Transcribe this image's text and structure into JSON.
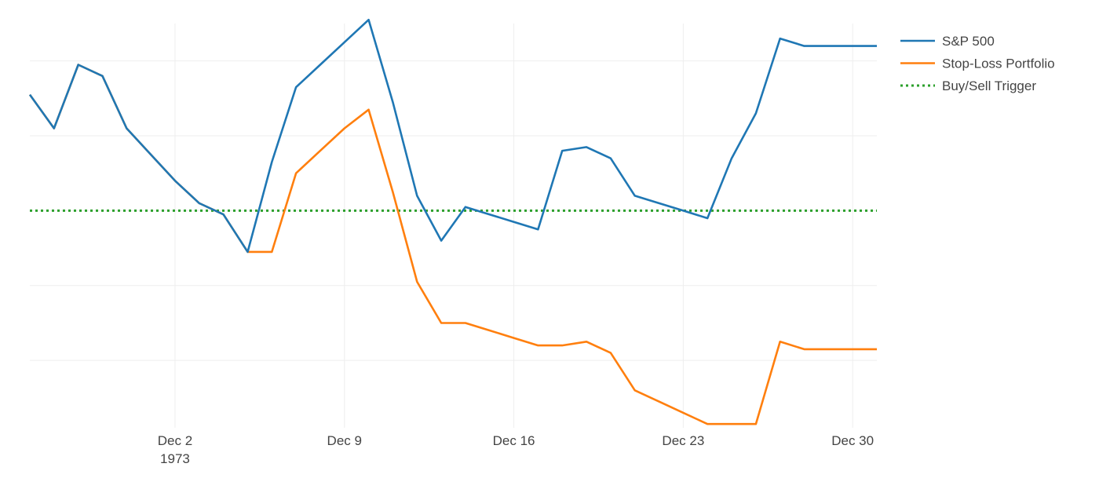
{
  "chart_data": {
    "type": "line",
    "title": "",
    "xlabel": "",
    "ylabel": "",
    "x": [
      "1973-11-26",
      "1973-11-27",
      "1973-11-28",
      "1973-11-29",
      "1973-11-30",
      "1973-12-01",
      "1973-12-02",
      "1973-12-03",
      "1973-12-04",
      "1973-12-05",
      "1973-12-06",
      "1973-12-07",
      "1973-12-08",
      "1973-12-09",
      "1973-12-10",
      "1973-12-11",
      "1973-12-12",
      "1973-12-13",
      "1973-12-14",
      "1973-12-15",
      "1973-12-16",
      "1973-12-17",
      "1973-12-18",
      "1973-12-19",
      "1973-12-20",
      "1973-12-21",
      "1973-12-22",
      "1973-12-23",
      "1973-12-24",
      "1973-12-25",
      "1973-12-26",
      "1973-12-27",
      "1973-12-28",
      "1973-12-29",
      "1973-12-30",
      "1973-12-31"
    ],
    "xlim": [
      "1973-11-26",
      "1973-12-31"
    ],
    "x_ticks": [
      {
        "date": "1973-12-02",
        "label": "Dec 2",
        "sublabel": "1973"
      },
      {
        "date": "1973-12-09",
        "label": "Dec 9"
      },
      {
        "date": "1973-12-16",
        "label": "Dec 16"
      },
      {
        "date": "1973-12-23",
        "label": "Dec 23"
      },
      {
        "date": "1973-12-30",
        "label": "Dec 30"
      }
    ],
    "y_tick_labels_shown": false,
    "y_gridlines": [
      -4,
      -2,
      0,
      2,
      4
    ],
    "ylim": [
      -5.8,
      5.0
    ],
    "grid": true,
    "legend_position": "top-right",
    "series": [
      {
        "name": "S&P 500",
        "color": "#1f77b4",
        "dash": "solid",
        "values": [
          3.1,
          2.2,
          3.9,
          3.6,
          2.2,
          1.5,
          0.8,
          0.2,
          -0.1,
          -1.1,
          1.3,
          3.3,
          3.9,
          4.5,
          5.1,
          2.9,
          0.4,
          -0.8,
          0.1,
          -0.1,
          -0.3,
          -0.5,
          1.6,
          1.7,
          1.4,
          0.4,
          0.2,
          0,
          -0.2,
          1.4,
          2.6,
          4.6,
          4.4,
          4.4,
          4.4,
          4.4
        ]
      },
      {
        "name": "Stop-Loss Portfolio",
        "color": "#ff7f0e",
        "dash": "solid",
        "values": [
          3.1,
          2.2,
          3.9,
          3.6,
          2.2,
          1.5,
          0.8,
          0.2,
          -0.1,
          -1.1,
          -1.1,
          1.0,
          1.6,
          2.2,
          2.7,
          0.5,
          -1.9,
          -3.0,
          -3.0,
          -3.2,
          -3.4,
          -3.6,
          -3.6,
          -3.5,
          -3.8,
          -4.8,
          -5.1,
          -5.4,
          -5.7,
          -5.7,
          -5.7,
          -3.5,
          -3.7,
          -3.7,
          -3.7,
          -3.7
        ]
      },
      {
        "name": "Buy/Sell Trigger",
        "color": "#2ca02c",
        "dash": "dotted",
        "values": [
          0,
          0,
          0,
          0,
          0,
          0,
          0,
          0,
          0,
          0,
          0,
          0,
          0,
          0,
          0,
          0,
          0,
          0,
          0,
          0,
          0,
          0,
          0,
          0,
          0,
          0,
          0,
          0,
          0,
          0,
          0,
          0,
          0,
          0,
          0,
          0
        ]
      }
    ]
  }
}
